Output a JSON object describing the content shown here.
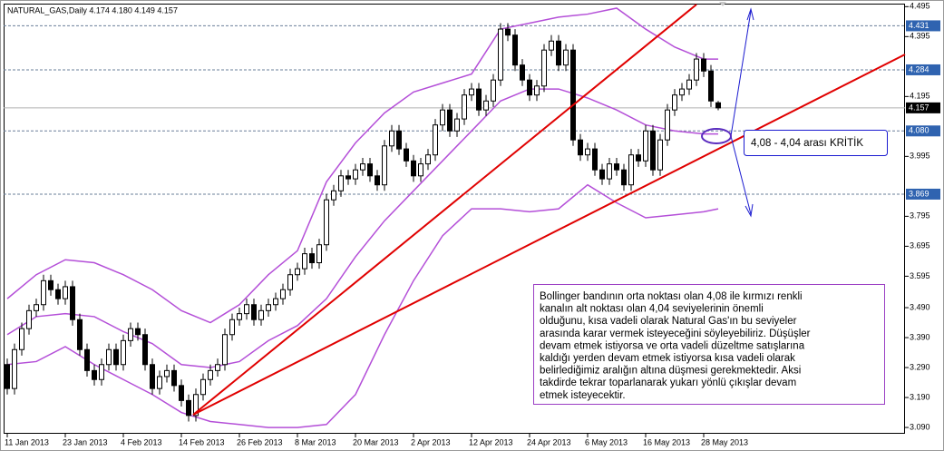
{
  "chart_data": {
    "type": "candlestick",
    "title": "NATURAL_GAS,Daily  4.174 4.180 4.149 4.157",
    "categories": [
      "11 Jan 2013",
      null,
      null,
      null,
      null,
      null,
      null,
      null,
      "23 Jan 2013",
      null,
      null,
      null,
      null,
      null,
      null,
      null,
      "4 Feb 2013",
      null,
      null,
      null,
      null,
      null,
      null,
      null,
      "14 Feb 2013",
      null,
      null,
      null,
      null,
      null,
      null,
      null,
      "26 Feb 2013",
      null,
      null,
      null,
      null,
      null,
      null,
      null,
      "8 Mar 2013",
      null,
      null,
      null,
      null,
      null,
      null,
      null,
      "20 Mar 2013",
      null,
      null,
      null,
      null,
      null,
      null,
      null,
      "2 Apr 2013",
      null,
      null,
      null,
      null,
      null,
      null,
      null,
      "12 Apr 2013",
      null,
      null,
      null,
      null,
      null,
      null,
      null,
      "24 Apr 2013",
      null,
      null,
      null,
      null,
      null,
      null,
      null,
      "6 May 2013",
      null,
      null,
      null,
      null,
      null,
      null,
      null,
      "16 May 2013",
      null,
      null,
      null,
      null,
      null,
      null,
      null,
      "28 May 2013",
      null,
      null
    ],
    "open": [
      3.3,
      3.22,
      3.35,
      3.42,
      3.48,
      3.5,
      3.58,
      3.55,
      3.52,
      3.56,
      3.45,
      3.35,
      3.28,
      3.25,
      3.3,
      3.35,
      3.3,
      3.38,
      3.42,
      3.4,
      3.3,
      3.22,
      3.26,
      3.28,
      3.23,
      3.18,
      3.13,
      3.2,
      3.25,
      3.28,
      3.3,
      3.4,
      3.45,
      3.47,
      3.5,
      3.45,
      3.48,
      3.5,
      3.52,
      3.55,
      3.6,
      3.62,
      3.67,
      3.64,
      3.7,
      3.85,
      3.88,
      3.93,
      3.92,
      3.95,
      3.97,
      3.93,
      3.9,
      4.03,
      4.08,
      4.02,
      3.98,
      3.93,
      3.97,
      4.0,
      4.1,
      4.15,
      4.08,
      4.12,
      4.2,
      4.22,
      4.15,
      4.18,
      4.25,
      4.42,
      4.4,
      4.3,
      4.25,
      4.2,
      4.23,
      4.35,
      4.38,
      4.3,
      4.35,
      4.05,
      4.0,
      4.02,
      3.95,
      3.92,
      3.97,
      3.95,
      3.9,
      4.0,
      3.98,
      4.08,
      3.95,
      4.05,
      4.15,
      4.2,
      4.22,
      4.25,
      4.32,
      4.28,
      4.174
    ],
    "high": [
      3.32,
      3.37,
      3.44,
      3.5,
      3.52,
      3.6,
      3.6,
      3.57,
      3.58,
      3.58,
      3.47,
      3.37,
      3.3,
      3.32,
      3.37,
      3.37,
      3.4,
      3.44,
      3.44,
      3.42,
      3.32,
      3.28,
      3.3,
      3.3,
      3.25,
      3.2,
      3.22,
      3.27,
      3.3,
      3.32,
      3.42,
      3.47,
      3.49,
      3.52,
      3.52,
      3.5,
      3.52,
      3.54,
      3.57,
      3.62,
      3.64,
      3.69,
      3.69,
      3.72,
      3.87,
      3.9,
      3.95,
      3.95,
      3.97,
      3.99,
      3.99,
      3.95,
      4.05,
      4.1,
      4.1,
      4.04,
      4.0,
      3.99,
      4.02,
      4.12,
      4.17,
      4.17,
      4.14,
      4.22,
      4.24,
      4.24,
      4.2,
      4.27,
      4.44,
      4.44,
      4.42,
      4.32,
      4.27,
      4.25,
      4.37,
      4.4,
      4.4,
      4.37,
      4.37,
      4.07,
      4.04,
      4.04,
      3.97,
      3.99,
      3.99,
      3.97,
      4.02,
      4.02,
      4.1,
      4.1,
      4.07,
      4.17,
      4.22,
      4.24,
      4.27,
      4.34,
      4.34,
      4.3,
      4.18
    ],
    "low": [
      3.2,
      3.2,
      3.33,
      3.4,
      3.46,
      3.48,
      3.53,
      3.5,
      3.5,
      3.43,
      3.33,
      3.26,
      3.23,
      3.23,
      3.28,
      3.28,
      3.28,
      3.36,
      3.38,
      3.28,
      3.2,
      3.2,
      3.24,
      3.21,
      3.16,
      3.11,
      3.11,
      3.18,
      3.23,
      3.26,
      3.28,
      3.38,
      3.43,
      3.45,
      3.43,
      3.43,
      3.46,
      3.48,
      3.5,
      3.53,
      3.58,
      3.6,
      3.62,
      3.62,
      3.68,
      3.83,
      3.86,
      3.9,
      3.9,
      3.93,
      3.91,
      3.88,
      3.88,
      4.01,
      4.0,
      3.96,
      3.91,
      3.91,
      3.95,
      3.98,
      4.08,
      4.06,
      4.06,
      4.1,
      4.18,
      4.13,
      4.13,
      4.16,
      4.23,
      4.38,
      4.28,
      4.23,
      4.18,
      4.18,
      4.21,
      4.33,
      4.28,
      4.28,
      4.03,
      3.98,
      3.98,
      3.93,
      3.9,
      3.9,
      3.93,
      3.88,
      3.88,
      3.96,
      3.96,
      3.93,
      3.93,
      4.03,
      4.13,
      4.18,
      4.2,
      4.23,
      4.26,
      4.16,
      4.149
    ],
    "close": [
      3.22,
      3.35,
      3.42,
      3.48,
      3.5,
      3.58,
      3.55,
      3.52,
      3.56,
      3.45,
      3.35,
      3.28,
      3.25,
      3.3,
      3.35,
      3.3,
      3.38,
      3.42,
      3.4,
      3.3,
      3.22,
      3.26,
      3.28,
      3.23,
      3.18,
      3.13,
      3.2,
      3.25,
      3.28,
      3.3,
      3.4,
      3.45,
      3.47,
      3.5,
      3.45,
      3.48,
      3.5,
      3.52,
      3.55,
      3.6,
      3.62,
      3.67,
      3.64,
      3.7,
      3.85,
      3.88,
      3.93,
      3.92,
      3.95,
      3.97,
      3.93,
      3.9,
      4.03,
      4.08,
      4.02,
      3.98,
      3.93,
      3.97,
      4.0,
      4.1,
      4.15,
      4.08,
      4.12,
      4.2,
      4.22,
      4.15,
      4.18,
      4.25,
      4.42,
      4.4,
      4.3,
      4.25,
      4.2,
      4.23,
      4.35,
      4.38,
      4.3,
      4.35,
      4.05,
      4.0,
      4.02,
      3.95,
      3.92,
      3.97,
      3.95,
      3.9,
      4.0,
      3.98,
      4.08,
      3.95,
      4.05,
      4.15,
      4.2,
      4.22,
      4.25,
      4.32,
      4.28,
      4.18,
      4.157
    ],
    "bands": {
      "color": "#b44fd8",
      "x": [
        0,
        4,
        8,
        12,
        16,
        20,
        24,
        28,
        32,
        36,
        40,
        44,
        48,
        52,
        56,
        60,
        64,
        68,
        72,
        76,
        80,
        84,
        88,
        92,
        96,
        98
      ],
      "upper": [
        3.52,
        3.6,
        3.65,
        3.64,
        3.6,
        3.55,
        3.48,
        3.44,
        3.5,
        3.6,
        3.68,
        3.91,
        4.04,
        4.14,
        4.21,
        4.24,
        4.27,
        4.42,
        4.44,
        4.46,
        4.47,
        4.49,
        4.42,
        4.36,
        4.32,
        4.32
      ],
      "middle": [
        3.4,
        3.46,
        3.47,
        3.46,
        3.41,
        3.37,
        3.3,
        3.29,
        3.31,
        3.38,
        3.43,
        3.52,
        3.66,
        3.78,
        3.88,
        3.98,
        4.08,
        4.18,
        4.22,
        4.22,
        4.19,
        4.15,
        4.1,
        4.08,
        4.07,
        4.07
      ],
      "lower": [
        3.3,
        3.31,
        3.36,
        3.3,
        3.25,
        3.2,
        3.14,
        3.11,
        3.1,
        3.09,
        3.09,
        3.1,
        3.2,
        3.4,
        3.58,
        3.73,
        3.82,
        3.82,
        3.81,
        3.82,
        3.9,
        3.84,
        3.79,
        3.8,
        3.81,
        3.82
      ]
    },
    "ylim": [
      3.069,
      4.502
    ],
    "yticks": [
      4.495,
      4.395,
      4.195,
      3.995,
      3.795,
      3.695,
      3.595,
      {
        "value": 3.49,
        "label": "3.490"
      },
      {
        "value": 3.39,
        "label": "3.390"
      },
      {
        "value": 3.29,
        "label": "3.290"
      },
      {
        "value": 3.19,
        "label": "3.190"
      },
      {
        "value": 3.09,
        "label": "3.090"
      }
    ],
    "levels": [
      4.431,
      4.284,
      {
        "value": 4.08,
        "label": "4.080"
      },
      3.869
    ],
    "last_price": 4.157,
    "callout": "4,08 - 4,04 arası KRİTİK",
    "note": [
      "Bollinger bandının orta noktası olan 4,08 ile kırmızı renkli",
      "kanalın alt noktası olan 4,04 seviyelerinin önemli",
      "olduğunu, kısa vadeli olarak Natural Gas'ın bu seviyeler",
      "arasında karar vermek isteyeceğini söyleyebiliriz. Düşüşler",
      "devam etmek istiyorsa ve orta vadeli düzeltme satışlarına",
      "kaldığı yerden devam etmek istiyorsa kısa vadeli olarak",
      "belirlediğimiz aralığın altına düşmesi gerekmektedir. Aksi",
      "takdirde tekrar toparlanarak yukarı yönlü çıkışlar devam",
      "etmek isteyecektir."
    ]
  }
}
